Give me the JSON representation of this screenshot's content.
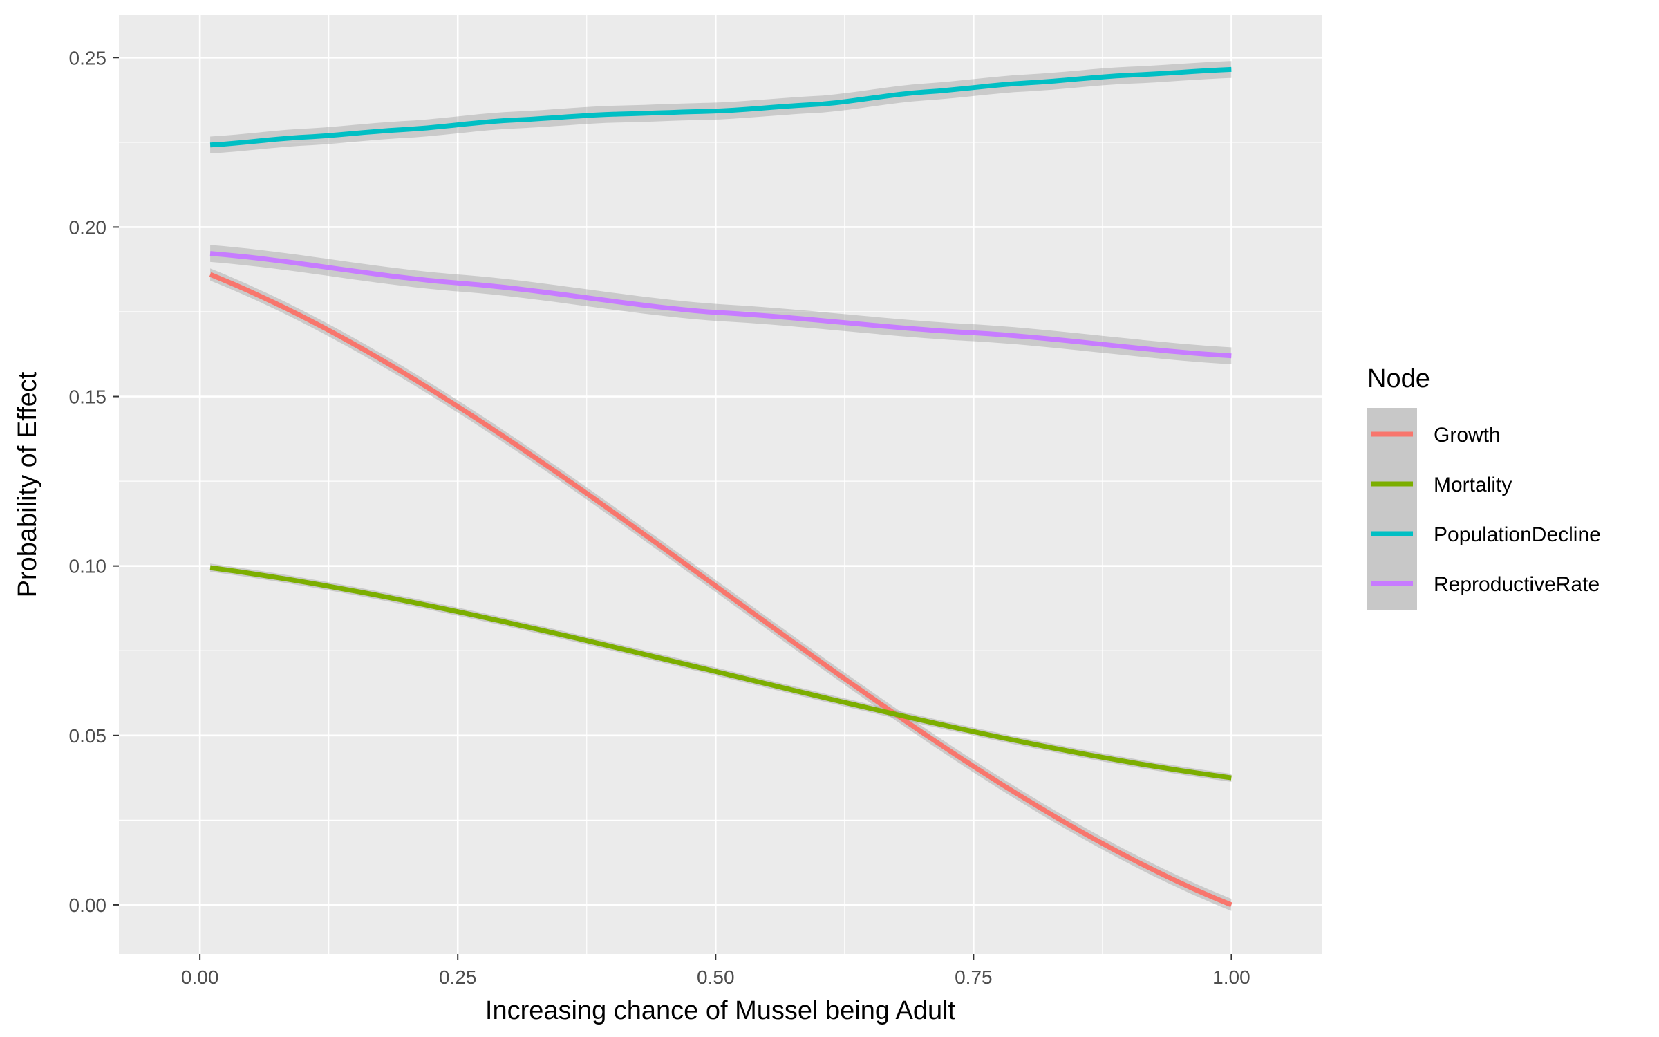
{
  "chart_data": {
    "type": "line",
    "title": "",
    "xlabel": "Increasing chance of Mussel being Adult",
    "ylabel": "Probability of Effect",
    "xlim": [
      -0.0785,
      1.0875
    ],
    "ylim": [
      -0.0145,
      0.2625
    ],
    "x_ticks": [
      0.0,
      0.25,
      0.5,
      0.75,
      1.0
    ],
    "x_tick_labels": [
      "0.00",
      "0.25",
      "0.50",
      "0.75",
      "1.00"
    ],
    "y_ticks": [
      0.0,
      0.05,
      0.1,
      0.15,
      0.2,
      0.25
    ],
    "y_tick_labels": [
      "0.00",
      "0.05",
      "0.10",
      "0.15",
      "0.20",
      "0.25"
    ],
    "grid": true,
    "confidence_band": true,
    "legend": {
      "title": "Node",
      "position": "right"
    },
    "series": [
      {
        "name": "Growth",
        "color": "#F8766D",
        "x": [
          0.01,
          1.0
        ],
        "y": [
          0.186,
          0.0
        ],
        "band": 0.0018
      },
      {
        "name": "Mortality",
        "color": "#7CAE00",
        "x": [
          0.01,
          1.0
        ],
        "y": [
          0.0995,
          0.0375
        ],
        "band": 0.0012
      },
      {
        "name": "PopulationDecline",
        "color": "#00BFC4",
        "x": [
          0.01,
          0.1,
          0.2,
          0.3,
          0.4,
          0.5,
          0.6,
          0.7,
          0.8,
          0.9,
          1.0
        ],
        "y": [
          0.2242,
          0.2265,
          0.2288,
          0.2315,
          0.2333,
          0.2342,
          0.2362,
          0.2398,
          0.2425,
          0.2448,
          0.2465
        ],
        "band": 0.0025
      },
      {
        "name": "ReproductiveRate",
        "color": "#C77CFF",
        "x": [
          0.01,
          0.25,
          0.5,
          0.75,
          1.0
        ],
        "y": [
          0.1922,
          0.1835,
          0.1748,
          0.1688,
          0.162
        ],
        "band": 0.0025
      }
    ]
  }
}
